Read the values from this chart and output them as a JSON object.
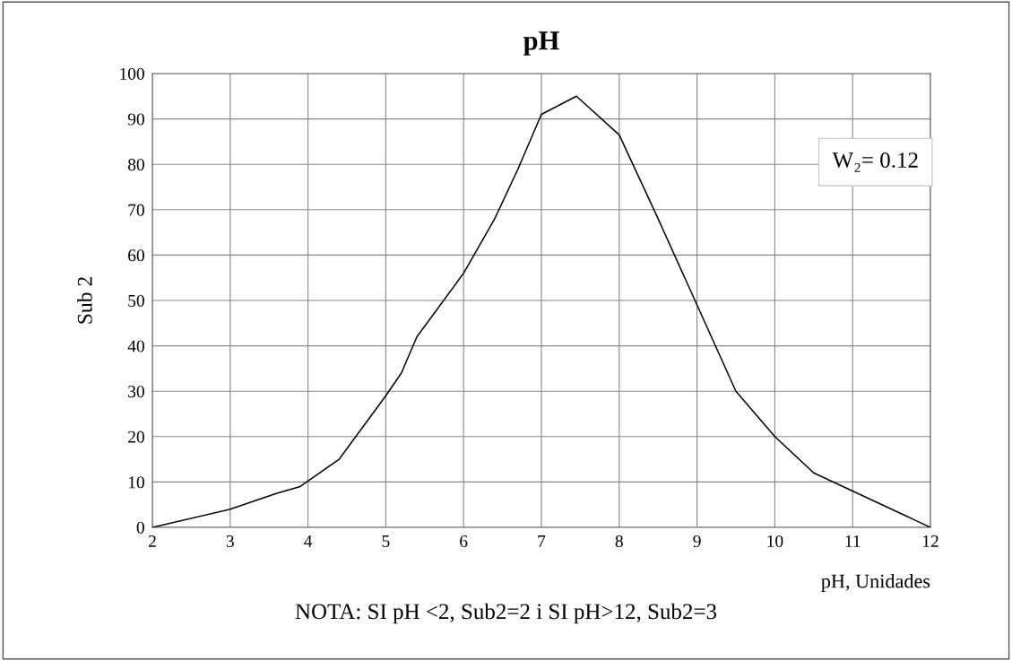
{
  "chart_data": {
    "type": "line",
    "title": "pH",
    "xlabel": "pH, Unidades",
    "ylabel": "Sub 2",
    "x": [
      2,
      3,
      3.6,
      3.9,
      4.4,
      5,
      5.2,
      5.4,
      6,
      6.4,
      6.7,
      7,
      7.45,
      8,
      8.5,
      9,
      9.5,
      10,
      10.5,
      11,
      11.5,
      12
    ],
    "series": [
      {
        "color": "#000000",
        "values": [
          0,
          4,
          7.5,
          9,
          15,
          29,
          34,
          42,
          56,
          68,
          79,
          91,
          95,
          86.5,
          68,
          49,
          30,
          20,
          12,
          8,
          4,
          0
        ]
      }
    ],
    "xlim": [
      2,
      12
    ],
    "xticks": [
      2,
      3,
      4,
      5,
      6,
      7,
      8,
      9,
      10,
      11,
      12
    ],
    "ylim": [
      0,
      100
    ],
    "yticks": [
      0,
      10,
      20,
      30,
      40,
      50,
      60,
      70,
      80,
      90,
      100
    ],
    "grid": true,
    "marker": "none",
    "line_style": "solid",
    "annotations": [
      "W₂= 0.12",
      "NOTA: SI pH <2, Sub2=2 i SI pH>12, Sub2=3"
    ]
  }
}
